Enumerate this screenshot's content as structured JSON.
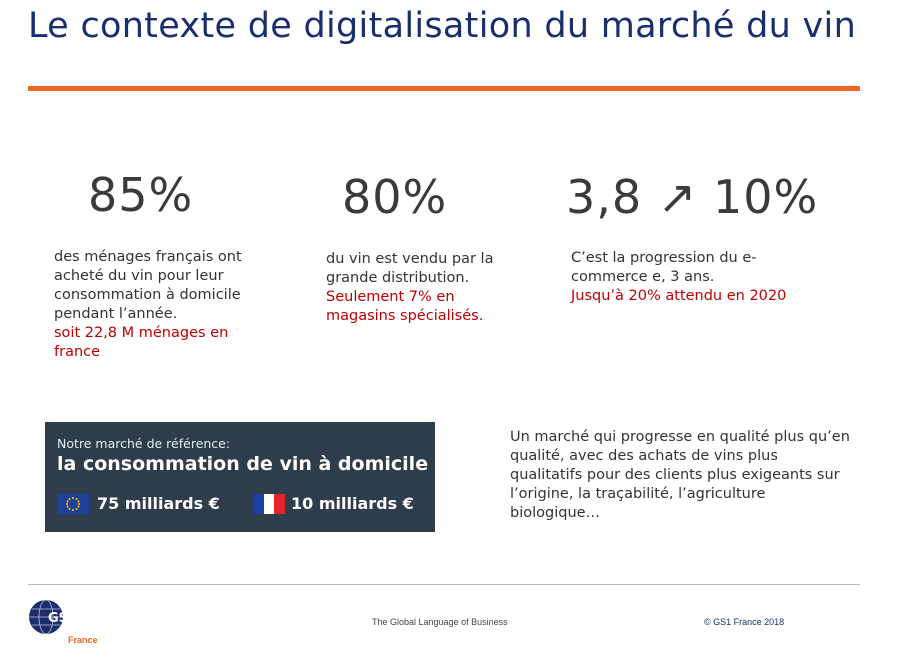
{
  "title": "Le contexte de digitalisation du marché du vin",
  "stats": [
    {
      "value": "85%",
      "desc": "des ménages français ont acheté du vin pour leur consommation à domicile pendant l’année.",
      "highlight": "soit 22,8 M ménages en france"
    },
    {
      "value": "80%",
      "desc": "du vin est vendu par la grande distribution.",
      "highlight": "Seulement 7% en magasins spécialisés."
    },
    {
      "value": "3,8 ↗ 10%",
      "desc": "C’est la progression du e-commerce e, 3 ans.",
      "highlight": "Jusqu’à 20% attendu en 2020"
    }
  ],
  "banner": {
    "subtitle": "Notre marché de référence:",
    "headline": "la consommation de vin à domicile",
    "eu_amount": "75 milliards €",
    "fr_amount": "10 milliards €"
  },
  "side_text": "Un marché qui progresse en qualité plus qu’en qualité, avec des achats de vins plus qualitatifs pour des clients plus exigeants sur l’origine, la traçabilité, l’agriculture biologique…",
  "footer": {
    "logo_text": "GS1",
    "logo_sub": "France",
    "tagline": "The Global Language of Business",
    "copyright": "© GS1 France 2018"
  },
  "colors": {
    "title": "#1a2e6e",
    "rule": "#f26522",
    "highlight": "#c00000",
    "banner_bg": "#2f3c4a",
    "gs1_orange": "#f26522",
    "gs1_navy": "#1a2e6e"
  }
}
